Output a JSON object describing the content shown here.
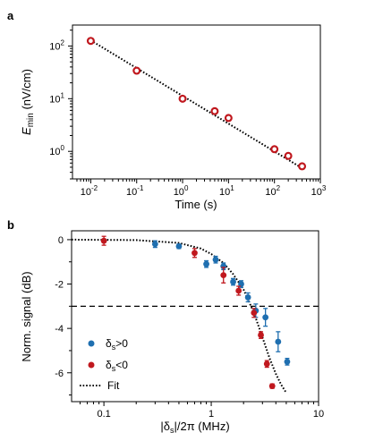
{
  "panels": {
    "a": {
      "label": "a"
    },
    "b": {
      "label": "b"
    }
  },
  "chart_data": [
    {
      "type": "scatter",
      "panel": "a",
      "xscale": "log",
      "yscale": "log",
      "xlim": [
        0.004,
        1000
      ],
      "ylim": [
        0.3,
        250
      ],
      "xticks": [
        0.01,
        0.1,
        1,
        10,
        100,
        1000
      ],
      "xtick_base": [
        "10",
        "10",
        "10",
        "10",
        "10",
        "10"
      ],
      "xtick_exp": [
        "-2",
        "-1",
        "0",
        "1",
        "2",
        "3"
      ],
      "yticks": [
        1,
        10,
        100
      ],
      "ytick_base": [
        "10",
        "10",
        "10"
      ],
      "ytick_exp": [
        "0",
        "1",
        "2"
      ],
      "xlabel": "Time (s)",
      "ylabel_main": "E",
      "ylabel_sub": "min",
      "ylabel_unit": " (nV/cm)",
      "series": [
        {
          "marker": "open-circle",
          "color": "#c0181e",
          "x": [
            0.01,
            0.1,
            1,
            5,
            10,
            100,
            200,
            400
          ],
          "y": [
            125,
            34,
            10,
            5.8,
            4.3,
            1.1,
            0.82,
            0.52
          ]
        }
      ],
      "fit": {
        "style": "dotted",
        "color": "#000000",
        "x": [
          0.01,
          400
        ],
        "y": [
          128,
          0.48
        ]
      }
    },
    {
      "type": "scatter",
      "panel": "b",
      "xscale": "log",
      "xlim": [
        0.05,
        10
      ],
      "ylim": [
        -7.3,
        0.4
      ],
      "xticks": [
        0.1,
        1,
        10
      ],
      "xtick_labels": [
        "0.1",
        "1",
        "10"
      ],
      "yticks": [
        0,
        -2,
        -4,
        -6
      ],
      "ytick_labels": [
        "0",
        "-2",
        "-4",
        "-6"
      ],
      "xlabel_pre": "|δ",
      "xlabel_sub": "s",
      "xlabel_post": "|/2π (MHz)",
      "ylabel": "Norm. signal (dB)",
      "hline": {
        "y": -3,
        "style": "dashed"
      },
      "series": [
        {
          "name_main": "δ",
          "name_sub": "s",
          "name_rest": ">0",
          "color": "#1f6fb0",
          "x": [
            0.3,
            0.5,
            0.9,
            1.1,
            1.3,
            1.6,
            1.9,
            2.2,
            2.6,
            3.2,
            4.2,
            5.1
          ],
          "y": [
            -0.2,
            -0.3,
            -1.1,
            -0.9,
            -1.2,
            -1.9,
            -2.0,
            -2.6,
            -3.2,
            -3.5,
            -4.6,
            -5.5
          ],
          "err": [
            0.15,
            0.1,
            0.15,
            0.15,
            0.15,
            0.15,
            0.15,
            0.2,
            0.3,
            0.4,
            0.45,
            0.15
          ]
        },
        {
          "name_main": "δ",
          "name_sub": "s",
          "name_rest": "<0",
          "color": "#c0181e",
          "x": [
            0.1,
            0.7,
            1.3,
            1.8,
            2.5,
            2.9,
            3.3,
            3.7
          ],
          "y": [
            -0.05,
            -0.6,
            -1.6,
            -2.3,
            -3.3,
            -4.3,
            -5.6,
            -6.6
          ],
          "err": [
            0.2,
            0.2,
            0.35,
            0.2,
            0.2,
            0.15,
            0.15,
            0.1
          ]
        }
      ],
      "fit": {
        "name": "Fit",
        "style": "dotted",
        "color": "#000000",
        "x": [
          0.05,
          0.2,
          0.5,
          0.8,
          1.0,
          1.3,
          1.6,
          2.0,
          2.5,
          3.0,
          3.5,
          4.0,
          4.5,
          5.0
        ],
        "y": [
          0.0,
          -0.02,
          -0.15,
          -0.4,
          -0.65,
          -1.05,
          -1.55,
          -2.25,
          -3.3,
          -4.4,
          -5.35,
          -6.05,
          -6.55,
          -6.9
        ]
      }
    }
  ]
}
